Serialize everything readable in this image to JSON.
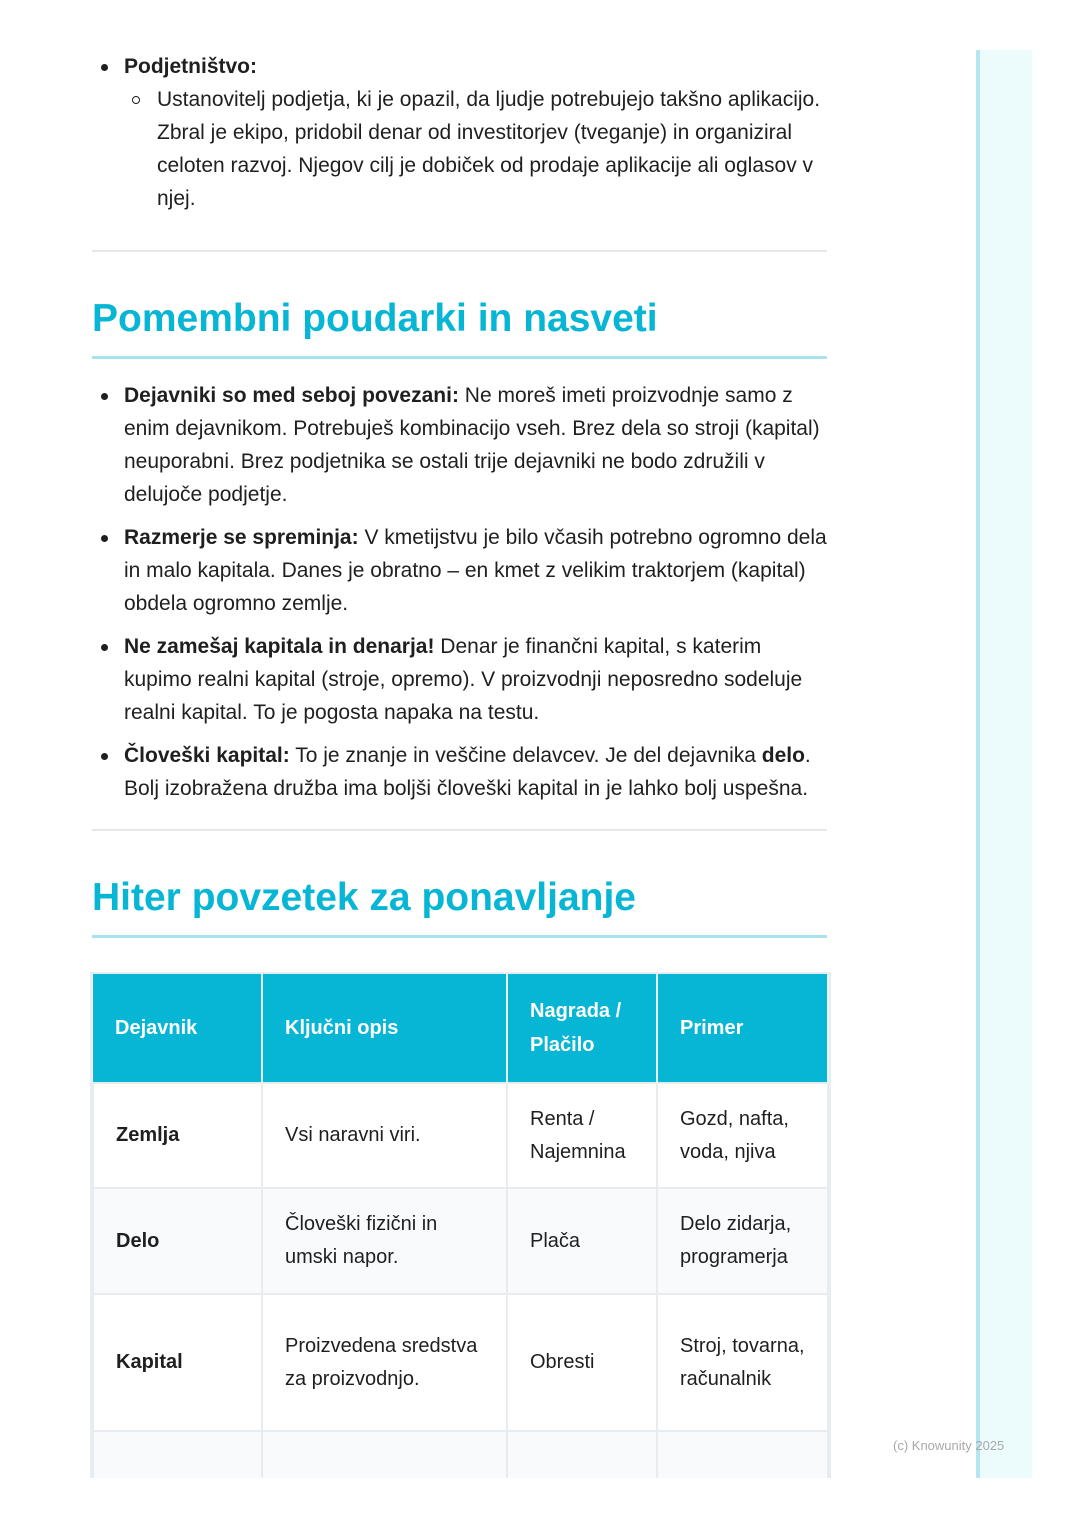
{
  "section1": {
    "bullet_bold": "Podjetništvo:",
    "sub": "Ustanovitelj podjetja, ki je opazil, da ljudje potrebujejo takšno aplikacijo. Zbral je ekipo, pridobil denar od investitorjev (tveganje) in organiziral celoten razvoj. Njegov cilj je dobiček od prodaje aplikacije ali oglasov v njej."
  },
  "tips": {
    "title": "Pomembni poudarki in nasveti",
    "items": [
      {
        "bold": "Dejavniki so med seboj povezani:",
        "text": " Ne moreš imeti proizvodnje samo z enim dejavnikom. Potrebuješ kombinacijo vseh. Brez dela so stroji (kapital) neuporabni. Brez podjetnika se ostali trije dejavniki ne bodo združili v delujoče podjetje."
      },
      {
        "bold": "Razmerje se spreminja:",
        "text": " V kmetijstvu je bilo včasih potrebno ogromno dela in malo kapitala. Danes je obratno – en kmet z velikim traktorjem (kapital) obdela ogromno zemlje."
      },
      {
        "bold": "Ne zamešaj kapitala in denarja!",
        "text": " Denar je finančni kapital, s katerim kupimo realni kapital (stroje, opremo). V proizvodnji neposredno sodeluje realni kapital. To je pogosta napaka na testu."
      },
      {
        "bold": "Človeški kapital:",
        "text": " To je znanje in veščine delavcev. Je del dejavnika ",
        "bold2": "delo",
        "text2": ". Bolj izobražena družba ima boljši človeški kapital in je lahko bolj uspešna."
      }
    ]
  },
  "summary": {
    "title": "Hiter povzetek za ponavljanje",
    "headers": [
      "Dejavnik",
      "Ključni opis",
      "Nagrada / Plačilo",
      "Primer"
    ],
    "rows": [
      [
        "Zemlja",
        "Vsi naravni viri.",
        "Renta / Najemnina",
        "Gozd, nafta, voda, njiva"
      ],
      [
        "Delo",
        "Človeški fizični in umski napor.",
        "Plača",
        "Delo zidarja, programerja"
      ],
      [
        "Kapital",
        "Proizvedena sredstva za proizvodnjo.",
        "Obresti",
        "Stroj, tovarna, računalnik"
      ]
    ]
  },
  "colors": {
    "accent": "#06b6d4",
    "accent_light": "#a5e4ef"
  },
  "watermark": "(c) Knowunity 2025"
}
